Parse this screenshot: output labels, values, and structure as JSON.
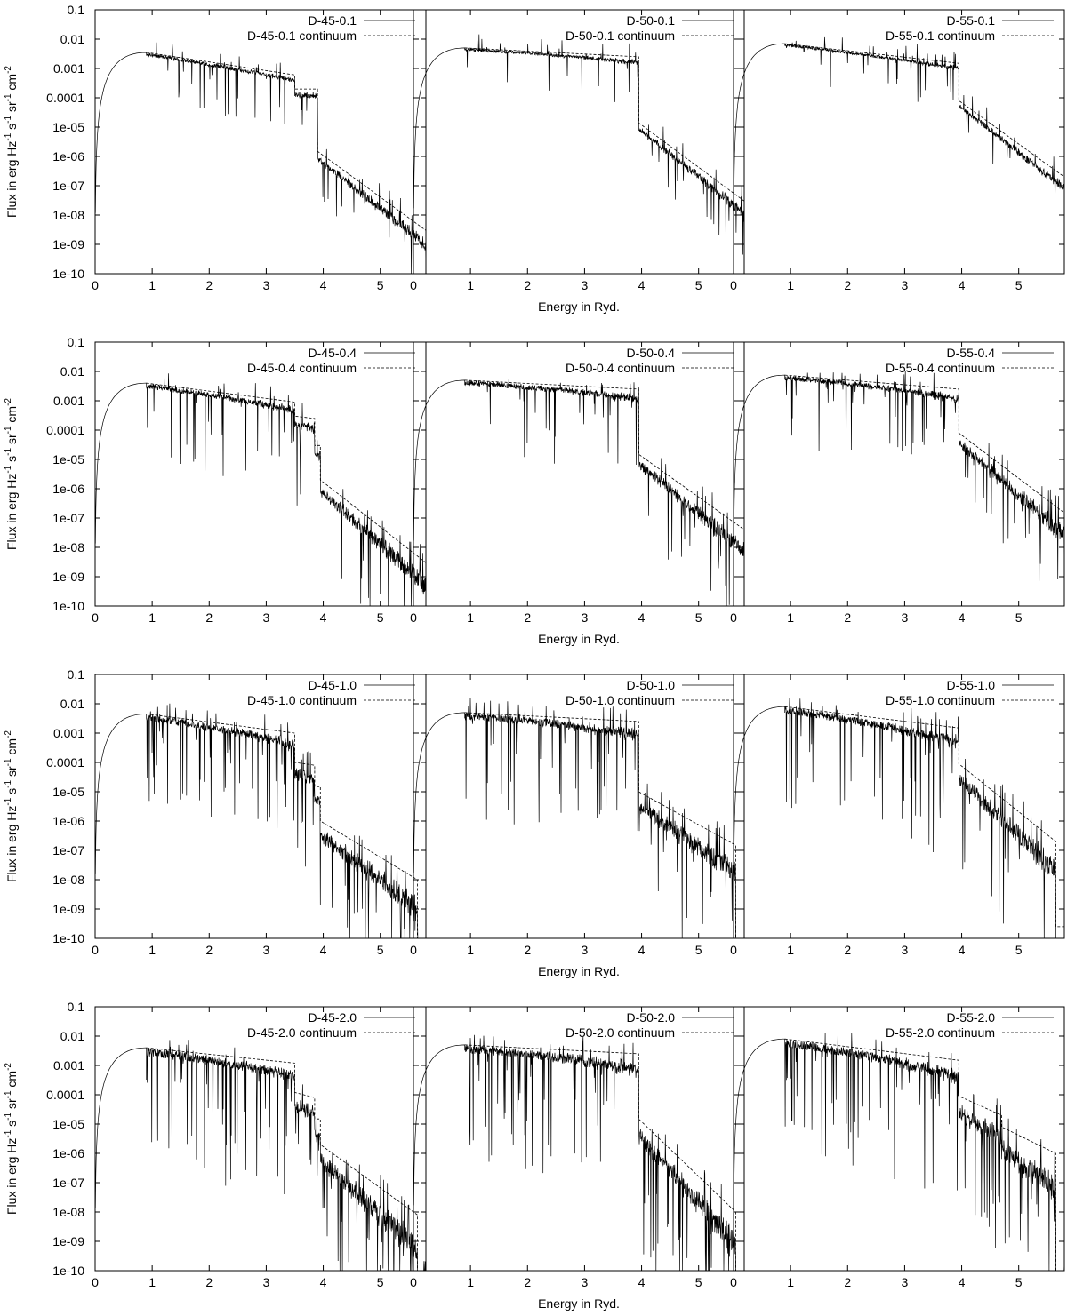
{
  "figure": {
    "xlabel": "Energy in Ryd.",
    "ylabel": "Flux in erg Hz^-1 s^-1 sr^-1 cm^-2",
    "ylabel_parts": [
      {
        "t": "Flux in erg Hz",
        "sup": false
      },
      {
        "t": "-1",
        "sup": true
      },
      {
        "t": " s",
        "sup": false
      },
      {
        "t": "-1",
        "sup": true
      },
      {
        "t": " sr",
        "sup": false
      },
      {
        "t": "-1",
        "sup": true
      },
      {
        "t": " cm",
        "sup": false
      },
      {
        "t": "-2",
        "sup": true
      }
    ],
    "xticks": [
      "0",
      "1",
      "2",
      "3",
      "4",
      "5"
    ],
    "yticks": [
      "1e-10",
      "1e-09",
      "1e-08",
      "1e-07",
      "1e-06",
      "1e-05",
      "0.0001",
      "0.001",
      "0.01",
      "0.1"
    ],
    "legend_position": "top-right"
  },
  "chart_data": [
    {
      "type": "line",
      "series": [
        {
          "name": "D-45-0.1"
        },
        {
          "name": "D-45-0.1 continuum"
        }
      ],
      "xlim": [
        0,
        5.8
      ],
      "ylim": [
        1e-10,
        0.1
      ],
      "yscale": "log",
      "noise": 1.2,
      "cont": [
        [
          0.9,
          0.0035
        ],
        [
          3.5,
          0.0006
        ],
        [
          3.5,
          0.0002
        ],
        [
          3.9,
          0.0002
        ],
        [
          3.9,
          1.5e-06
        ],
        [
          5.8,
          3e-09
        ]
      ]
    },
    {
      "type": "line",
      "series": [
        {
          "name": "D-50-0.1"
        },
        {
          "name": "D-50-0.1 continuum"
        }
      ],
      "xlim": [
        0,
        5.8
      ],
      "ylim": [
        1e-10,
        0.1
      ],
      "yscale": "log",
      "noise": 1.0,
      "cont": [
        [
          0.9,
          0.005
        ],
        [
          3.95,
          0.0025
        ],
        [
          3.95,
          1.4e-05
        ],
        [
          5.8,
          3e-08
        ]
      ]
    },
    {
      "type": "line",
      "series": [
        {
          "name": "D-55-0.1"
        },
        {
          "name": "D-55-0.1 continuum"
        }
      ],
      "xlim": [
        0,
        5.8
      ],
      "ylim": [
        1e-10,
        0.1
      ],
      "yscale": "log",
      "noise": 0.9,
      "cont": [
        [
          0.9,
          0.007
        ],
        [
          3.95,
          0.0015
        ],
        [
          3.95,
          8e-05
        ],
        [
          5.8,
          2e-07
        ]
      ]
    },
    {
      "type": "line",
      "series": [
        {
          "name": "D-45-0.4"
        },
        {
          "name": "D-45-0.4 continuum"
        }
      ],
      "xlim": [
        0,
        5.8
      ],
      "ylim": [
        1e-10,
        0.1
      ],
      "yscale": "log",
      "noise": 1.8,
      "cont": [
        [
          0.9,
          0.004
        ],
        [
          3.5,
          0.0009
        ],
        [
          3.5,
          0.0003
        ],
        [
          3.85,
          0.00025
        ],
        [
          3.85,
          3e-05
        ],
        [
          3.95,
          3e-05
        ],
        [
          3.95,
          2e-06
        ],
        [
          5.8,
          3e-09
        ]
      ]
    },
    {
      "type": "line",
      "series": [
        {
          "name": "D-50-0.4"
        },
        {
          "name": "D-50-0.4 continuum"
        }
      ],
      "xlim": [
        0,
        5.8
      ],
      "ylim": [
        1e-10,
        0.1
      ],
      "yscale": "log",
      "noise": 1.7,
      "cont": [
        [
          0.9,
          0.005
        ],
        [
          3.95,
          0.0025
        ],
        [
          3.95,
          1.5e-05
        ],
        [
          5.8,
          4e-08
        ]
      ]
    },
    {
      "type": "line",
      "series": [
        {
          "name": "D-55-0.4"
        },
        {
          "name": "D-55-0.4 continuum"
        }
      ],
      "xlim": [
        0,
        5.8
      ],
      "ylim": [
        1e-10,
        0.1
      ],
      "yscale": "log",
      "noise": 1.7,
      "cont": [
        [
          0.9,
          0.0075
        ],
        [
          3.95,
          0.0025
        ],
        [
          3.95,
          8e-05
        ],
        [
          5.8,
          1.5e-07
        ]
      ]
    },
    {
      "type": "line",
      "series": [
        {
          "name": "D-45-1.0"
        },
        {
          "name": "D-45-1.0 continuum"
        }
      ],
      "xlim": [
        0,
        5.8
      ],
      "ylim": [
        1e-10,
        0.1
      ],
      "yscale": "log",
      "noise": 2.4,
      "cont": [
        [
          0.9,
          0.0045
        ],
        [
          3.5,
          0.001
        ],
        [
          3.5,
          0.0001
        ],
        [
          3.85,
          8e-05
        ],
        [
          3.85,
          1.5e-05
        ],
        [
          3.95,
          1.5e-05
        ],
        [
          3.95,
          1e-06
        ],
        [
          5.65,
          1e-08
        ],
        [
          5.65,
          1e-10
        ]
      ]
    },
    {
      "type": "line",
      "series": [
        {
          "name": "D-50-1.0"
        },
        {
          "name": "D-50-1.0 continuum"
        }
      ],
      "xlim": [
        0,
        5.8
      ],
      "ylim": [
        1e-10,
        0.1
      ],
      "yscale": "log",
      "noise": 2.4,
      "cont": [
        [
          0.9,
          0.005
        ],
        [
          3.95,
          0.0025
        ],
        [
          3.95,
          1e-05
        ],
        [
          5.65,
          1.5e-07
        ],
        [
          5.65,
          1e-10
        ]
      ]
    },
    {
      "type": "line",
      "series": [
        {
          "name": "D-55-1.0"
        },
        {
          "name": "D-55-1.0 continuum"
        }
      ],
      "xlim": [
        0,
        5.8
      ],
      "ylim": [
        1e-10,
        0.1
      ],
      "yscale": "log",
      "noise": 2.5,
      "cont": [
        [
          0.9,
          0.008
        ],
        [
          3.95,
          0.0015
        ],
        [
          3.95,
          9e-05
        ],
        [
          5.65,
          2e-07
        ],
        [
          5.65,
          2.5e-10
        ],
        [
          5.8,
          2.5e-10
        ]
      ]
    },
    {
      "type": "line",
      "series": [
        {
          "name": "D-45-2.0"
        },
        {
          "name": "D-45-2.0 continuum"
        }
      ],
      "xlim": [
        0,
        5.8
      ],
      "ylim": [
        1e-10,
        0.1
      ],
      "yscale": "log",
      "noise": 2.8,
      "cont": [
        [
          0.9,
          0.004
        ],
        [
          3.5,
          0.0012
        ],
        [
          3.5,
          0.00012
        ],
        [
          3.85,
          8e-05
        ],
        [
          3.85,
          1.5e-05
        ],
        [
          3.95,
          1.5e-05
        ],
        [
          3.95,
          2e-06
        ],
        [
          5.65,
          8e-09
        ],
        [
          5.65,
          1e-10
        ]
      ]
    },
    {
      "type": "line",
      "series": [
        {
          "name": "D-50-2.0"
        },
        {
          "name": "D-50-2.0 continuum"
        }
      ],
      "xlim": [
        0,
        5.8
      ],
      "ylim": [
        1e-10,
        0.1
      ],
      "yscale": "log",
      "noise": 2.8,
      "cont": [
        [
          0.9,
          0.005
        ],
        [
          3.95,
          0.0025
        ],
        [
          3.95,
          1.5e-05
        ],
        [
          5.65,
          1e-08
        ],
        [
          5.65,
          1e-10
        ]
      ]
    },
    {
      "type": "line",
      "series": [
        {
          "name": "D-55-2.0"
        },
        {
          "name": "D-55-2.0 continuum"
        }
      ],
      "xlim": [
        0,
        5.8
      ],
      "ylim": [
        1e-10,
        0.1
      ],
      "yscale": "log",
      "noise": 2.8,
      "cont": [
        [
          0.9,
          0.008
        ],
        [
          3.95,
          0.0015
        ],
        [
          3.95,
          9e-05
        ],
        [
          4.7,
          2e-05
        ],
        [
          4.7,
          8e-06
        ],
        [
          5.65,
          1e-06
        ],
        [
          5.65,
          1e-10
        ]
      ]
    }
  ]
}
